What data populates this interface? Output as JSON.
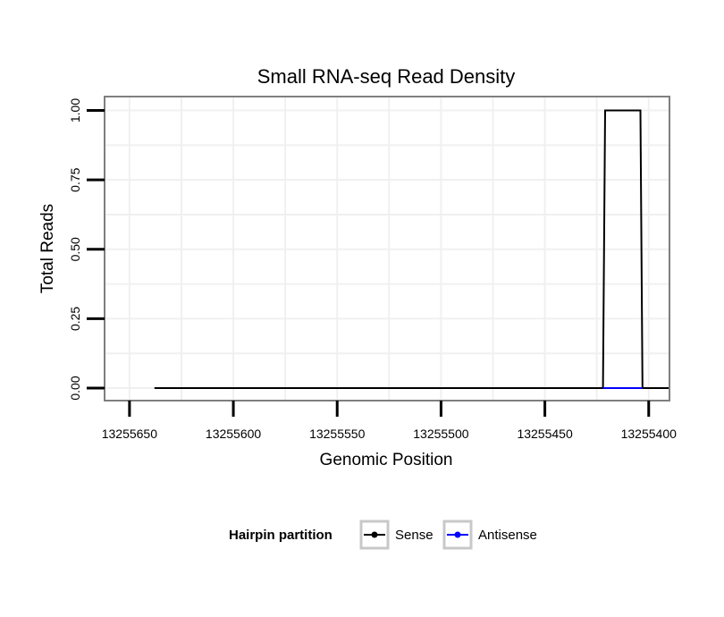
{
  "chart_data": {
    "type": "line",
    "title": "Small RNA-seq Read Density",
    "xlabel": "Genomic Position",
    "ylabel": "Total Reads",
    "x_reversed": true,
    "xlim": [
      13255662,
      13255390
    ],
    "ylim": [
      -0.045,
      1.05
    ],
    "xticks": [
      13255650,
      13255600,
      13255550,
      13255500,
      13255450,
      13255400
    ],
    "xtick_labels": [
      "13255650",
      "13255600",
      "13255550",
      "13255500",
      "13255450",
      "13255400"
    ],
    "yticks": [
      0,
      0.25,
      0.5,
      0.75,
      1
    ],
    "ytick_labels": [
      "0.00",
      "0.25",
      "0.50",
      "0.75",
      "1.00"
    ],
    "grid": true,
    "series": [
      {
        "name": "Sense",
        "color": "#000000",
        "x": [
          13255638,
          13255422,
          13255421,
          13255404,
          13255403,
          13255390
        ],
        "y": [
          0,
          0,
          1,
          1,
          0,
          0
        ]
      },
      {
        "name": "Antisense",
        "color": "#0000ff",
        "x": [
          13255422,
          13255403
        ],
        "y": [
          0,
          0
        ]
      }
    ],
    "legend": {
      "title": "Hairpin partition",
      "position": "bottom",
      "entries": [
        {
          "label": "Sense",
          "color": "#000000"
        },
        {
          "label": "Antisense",
          "color": "#0000ff"
        }
      ]
    }
  }
}
